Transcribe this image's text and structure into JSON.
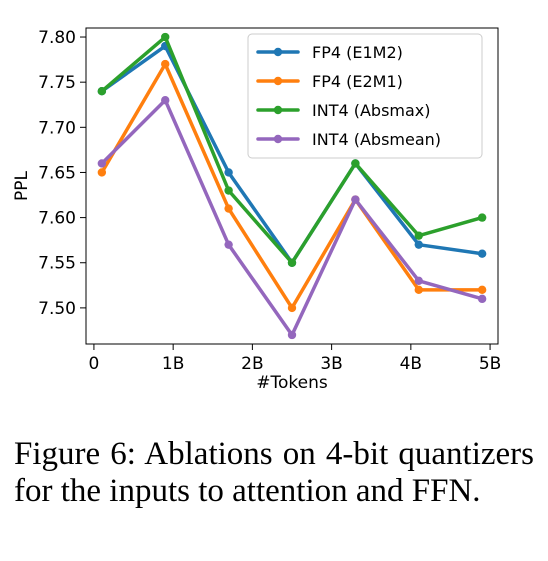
{
  "chart_data": {
    "type": "line",
    "title": "",
    "xlabel": "#Tokens",
    "ylabel": "PPL",
    "x": [
      0.1,
      0.9,
      1.7,
      2.5,
      3.3,
      4.1,
      4.9
    ],
    "xlim": [
      -0.1,
      5.1
    ],
    "ylim": [
      7.46,
      7.81
    ],
    "x_ticks": [
      0,
      1,
      2,
      3,
      4,
      5
    ],
    "x_tick_labels": [
      "0",
      "1B",
      "2B",
      "3B",
      "4B",
      "5B"
    ],
    "y_ticks": [
      7.5,
      7.55,
      7.6,
      7.65,
      7.7,
      7.75,
      7.8
    ],
    "y_tick_labels": [
      "7.50",
      "7.55",
      "7.60",
      "7.65",
      "7.70",
      "7.75",
      "7.80"
    ],
    "grid": false,
    "legend_position": "top-right",
    "series": [
      {
        "name": "FP4 (E1M2)",
        "color": "#1f77b4",
        "values": [
          7.74,
          7.79,
          7.65,
          7.55,
          7.66,
          7.57,
          7.56
        ]
      },
      {
        "name": "FP4 (E2M1)",
        "color": "#ff7f0e",
        "values": [
          7.65,
          7.77,
          7.61,
          7.5,
          7.62,
          7.52,
          7.52
        ]
      },
      {
        "name": "INT4 (Absmax)",
        "color": "#2ca02c",
        "values": [
          7.74,
          7.8,
          7.63,
          7.55,
          7.66,
          7.58,
          7.6
        ]
      },
      {
        "name": "INT4 (Absmean)",
        "color": "#9467bd",
        "values": [
          7.66,
          7.73,
          7.57,
          7.47,
          7.62,
          7.53,
          7.51
        ]
      }
    ]
  },
  "caption": "Figure 6: Ablations on 4-bit quantizers for the inputs to attention and FFN."
}
